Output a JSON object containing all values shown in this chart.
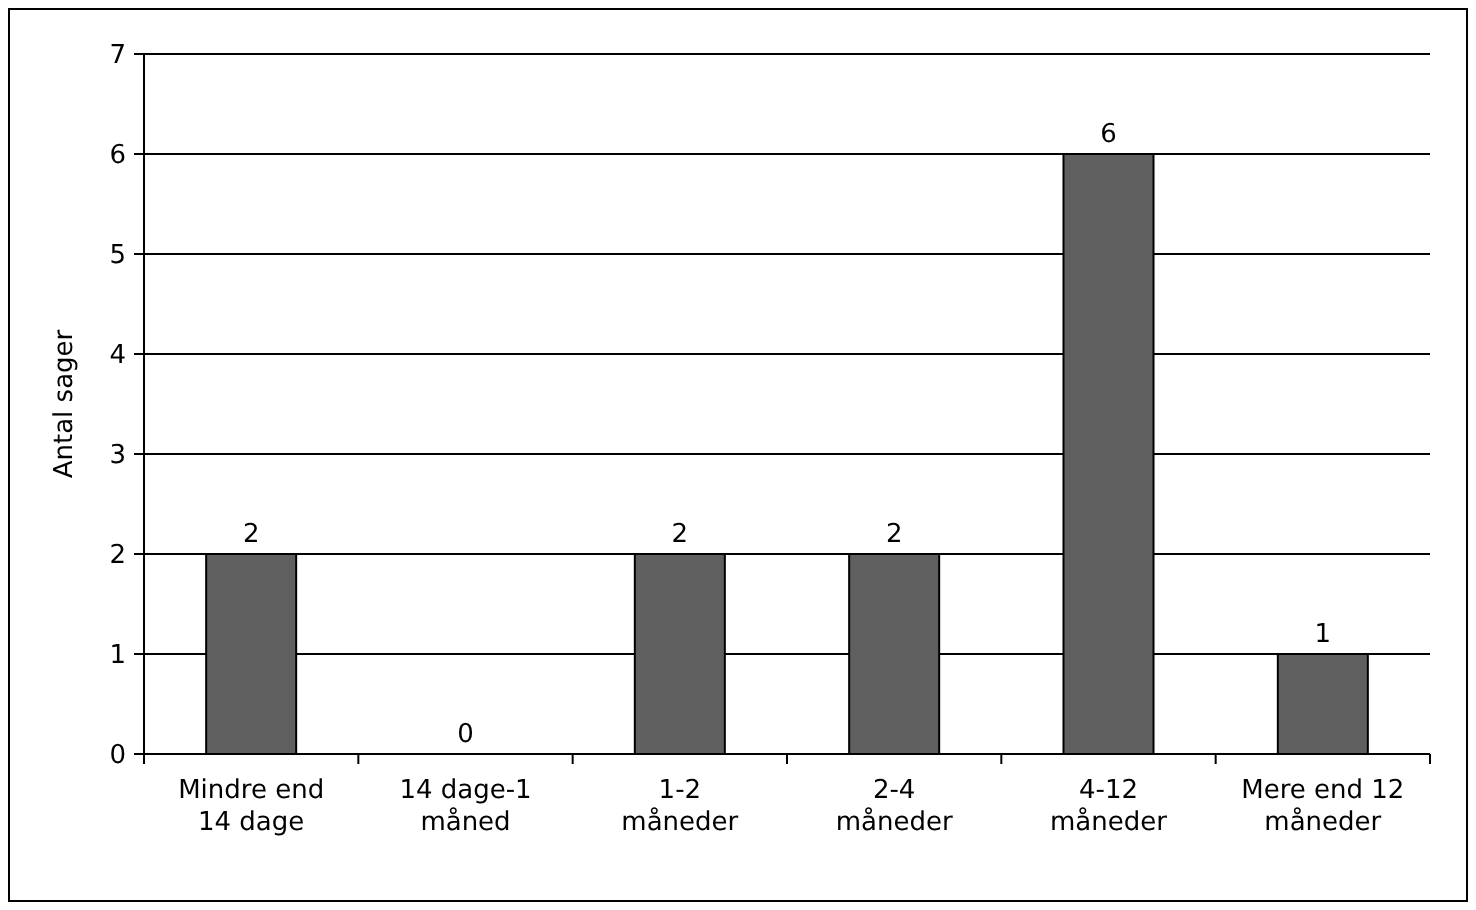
{
  "chart_data": {
    "type": "bar",
    "ylabel": "Antal sager",
    "categories": [
      "Mindre end 14 dage",
      "14 dage-1 måned",
      "1-2 måneder",
      "2-4 måneder",
      "4-12 måneder",
      "Mere end 12 måneder"
    ],
    "values": [
      2,
      0,
      2,
      2,
      6,
      1
    ],
    "color": "#5f5f5f",
    "ylim": [
      0,
      7
    ],
    "yticks": [
      0,
      1,
      2,
      3,
      4,
      5,
      6,
      7
    ],
    "grid": "y",
    "data_labels": true
  }
}
